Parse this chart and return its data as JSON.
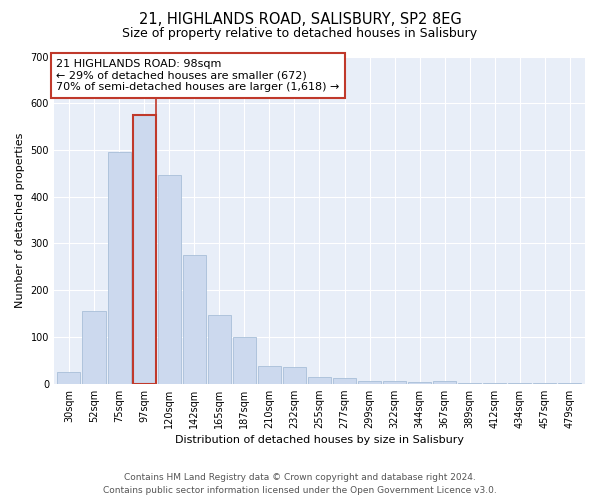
{
  "title": "21, HIGHLANDS ROAD, SALISBURY, SP2 8EG",
  "subtitle": "Size of property relative to detached houses in Salisbury",
  "xlabel": "Distribution of detached houses by size in Salisbury",
  "ylabel": "Number of detached properties",
  "categories": [
    "30sqm",
    "52sqm",
    "75sqm",
    "97sqm",
    "120sqm",
    "142sqm",
    "165sqm",
    "187sqm",
    "210sqm",
    "232sqm",
    "255sqm",
    "277sqm",
    "299sqm",
    "322sqm",
    "344sqm",
    "367sqm",
    "389sqm",
    "412sqm",
    "434sqm",
    "457sqm",
    "479sqm"
  ],
  "values": [
    25,
    155,
    495,
    575,
    447,
    275,
    147,
    100,
    38,
    35,
    15,
    12,
    5,
    5,
    3,
    5,
    2,
    1,
    1,
    1,
    2
  ],
  "bar_color": "#ccd9ee",
  "bar_edge_color": "#a8bfd8",
  "highlight_bar_index": 3,
  "highlight_bar_edge_color": "#c0392b",
  "vline_x_index": 3,
  "vline_color": "#c0392b",
  "annotation_text_line1": "21 HIGHLANDS ROAD: 98sqm",
  "annotation_text_line2": "← 29% of detached houses are smaller (672)",
  "annotation_text_line3": "70% of semi-detached houses are larger (1,618) →",
  "annotation_box_color": "#ffffff",
  "annotation_box_edge_color": "#c0392b",
  "ylim": [
    0,
    700
  ],
  "yticks": [
    0,
    100,
    200,
    300,
    400,
    500,
    600,
    700
  ],
  "footer_line1": "Contains HM Land Registry data © Crown copyright and database right 2024.",
  "footer_line2": "Contains public sector information licensed under the Open Government Licence v3.0.",
  "background_color": "#ffffff",
  "plot_bg_color": "#e8eef8",
  "title_fontsize": 10.5,
  "subtitle_fontsize": 9,
  "label_fontsize": 8,
  "tick_fontsize": 7,
  "footer_fontsize": 6.5
}
